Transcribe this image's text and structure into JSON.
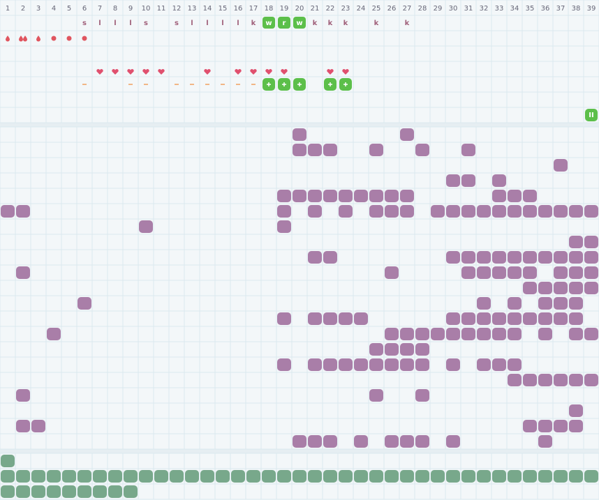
{
  "header": [
    1,
    2,
    3,
    4,
    5,
    6,
    7,
    8,
    9,
    10,
    11,
    12,
    13,
    14,
    15,
    16,
    17,
    18,
    19,
    20,
    21,
    22,
    23,
    24,
    25,
    26,
    27,
    28,
    29,
    30,
    31,
    32,
    33,
    34,
    35,
    36,
    37,
    38,
    39
  ],
  "letters": [
    "s",
    "l",
    "l",
    "l",
    "s",
    "s",
    "l",
    "l",
    "l",
    "l",
    "k",
    "w",
    "r",
    "w",
    "k",
    "k",
    "k",
    "k",
    "k"
  ],
  "pause_label": "II"
}
